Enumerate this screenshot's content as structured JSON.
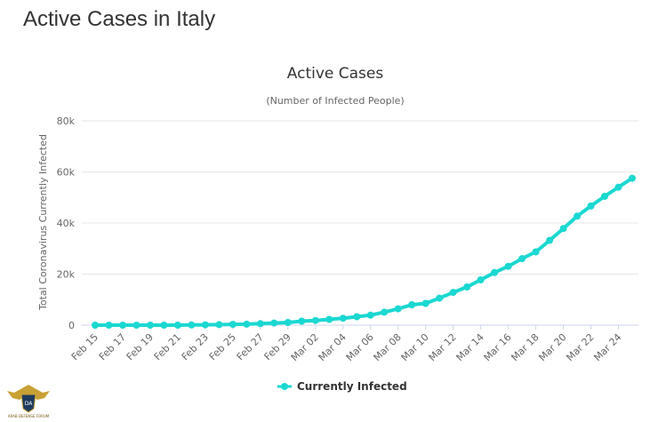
{
  "page": {
    "title": "Active Cases in Italy"
  },
  "colors": {
    "series": "#1ad8d1",
    "grid": "#e6e6e6",
    "axis": "#ccd6eb"
  },
  "chart_data": {
    "type": "line",
    "title": "Active Cases",
    "subtitle": "(Number of Infected People)",
    "xlabel": "",
    "ylabel": "Total Coronavirus Currently Infected",
    "ylim": [
      0,
      80000
    ],
    "yticks": [
      0,
      20000,
      40000,
      60000,
      80000
    ],
    "ytick_labels": [
      "0",
      "20k",
      "40k",
      "60k",
      "80k"
    ],
    "legend_position": "bottom-center",
    "grid": true,
    "x_categories": [
      "Feb 15",
      "Feb 16",
      "Feb 17",
      "Feb 18",
      "Feb 19",
      "Feb 20",
      "Feb 21",
      "Feb 22",
      "Feb 23",
      "Feb 24",
      "Feb 25",
      "Feb 26",
      "Feb 27",
      "Feb 28",
      "Feb 29",
      "Mar 01",
      "Mar 02",
      "Mar 03",
      "Mar 04",
      "Mar 05",
      "Mar 06",
      "Mar 07",
      "Mar 08",
      "Mar 09",
      "Mar 10",
      "Mar 11",
      "Mar 12",
      "Mar 13",
      "Mar 14",
      "Mar 15",
      "Mar 16",
      "Mar 17",
      "Mar 18",
      "Mar 19",
      "Mar 20",
      "Mar 21",
      "Mar 22",
      "Mar 23",
      "Mar 24",
      "Mar 25"
    ],
    "x_tick_labels": [
      "Feb 15",
      "Feb 17",
      "Feb 19",
      "Feb 21",
      "Feb 23",
      "Feb 25",
      "Feb 27",
      "Feb 29",
      "Mar 02",
      "Mar 04",
      "Mar 06",
      "Mar 08",
      "Mar 10",
      "Mar 12",
      "Mar 14",
      "Mar 16",
      "Mar 18",
      "Mar 20",
      "Mar 22",
      "Mar 24"
    ],
    "series": [
      {
        "name": "Currently Infected",
        "values": [
          3,
          3,
          3,
          3,
          3,
          3,
          17,
          76,
          150,
          221,
          311,
          385,
          588,
          821,
          1049,
          1577,
          1835,
          2263,
          2706,
          3296,
          3916,
          5061,
          6387,
          7985,
          8514,
          10590,
          12839,
          14955,
          17750,
          20603,
          23073,
          26062,
          28710,
          33190,
          37860,
          42681,
          46638,
          50418,
          54030,
          57521
        ]
      }
    ]
  },
  "logo": {
    "abbr": "DA",
    "name": "ARAB DEFENSE FORUM"
  }
}
